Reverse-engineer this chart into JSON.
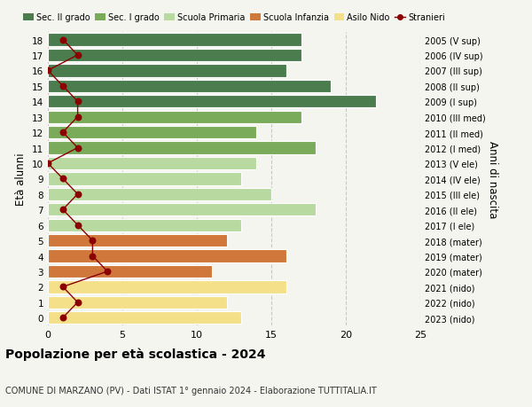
{
  "ages": [
    18,
    17,
    16,
    15,
    14,
    13,
    12,
    11,
    10,
    9,
    8,
    7,
    6,
    5,
    4,
    3,
    2,
    1,
    0
  ],
  "bar_values": [
    17,
    17,
    16,
    19,
    22,
    17,
    14,
    18,
    14,
    13,
    15,
    18,
    13,
    12,
    16,
    11,
    16,
    12,
    13
  ],
  "stranieri_values": [
    1,
    2,
    0,
    1,
    2,
    2,
    1,
    2,
    0,
    1,
    2,
    1,
    2,
    3,
    3,
    4,
    1,
    2,
    1
  ],
  "right_labels": [
    "2005 (V sup)",
    "2006 (IV sup)",
    "2007 (III sup)",
    "2008 (II sup)",
    "2009 (I sup)",
    "2010 (III med)",
    "2011 (II med)",
    "2012 (I med)",
    "2013 (V ele)",
    "2014 (IV ele)",
    "2015 (III ele)",
    "2016 (II ele)",
    "2017 (I ele)",
    "2018 (mater)",
    "2019 (mater)",
    "2020 (mater)",
    "2021 (nido)",
    "2022 (nido)",
    "2023 (nido)"
  ],
  "bar_colors": [
    "#4a7c4e",
    "#4a7c4e",
    "#4a7c4e",
    "#4a7c4e",
    "#4a7c4e",
    "#7aab5a",
    "#7aab5a",
    "#7aab5a",
    "#b8d9a0",
    "#b8d9a0",
    "#b8d9a0",
    "#b8d9a0",
    "#b8d9a0",
    "#d0783c",
    "#d0783c",
    "#d0783c",
    "#f5e08a",
    "#f5e08a",
    "#f5e08a"
  ],
  "legend_labels": [
    "Sec. II grado",
    "Sec. I grado",
    "Scuola Primaria",
    "Scuola Infanzia",
    "Asilo Nido",
    "Stranieri"
  ],
  "legend_colors": [
    "#4a7c4e",
    "#7aab5a",
    "#b8d9a0",
    "#d0783c",
    "#f5e08a",
    "#8b0000"
  ],
  "ylabel": "Età alunni",
  "ylabel_right": "Anni di nascita",
  "title": "Popolazione per età scolastica - 2024",
  "subtitle": "COMUNE DI MARZANO (PV) - Dati ISTAT 1° gennaio 2024 - Elaborazione TUTTITALIA.IT",
  "xlim": [
    0,
    25
  ],
  "background_color": "#f5f5f0",
  "bar_height": 0.82
}
